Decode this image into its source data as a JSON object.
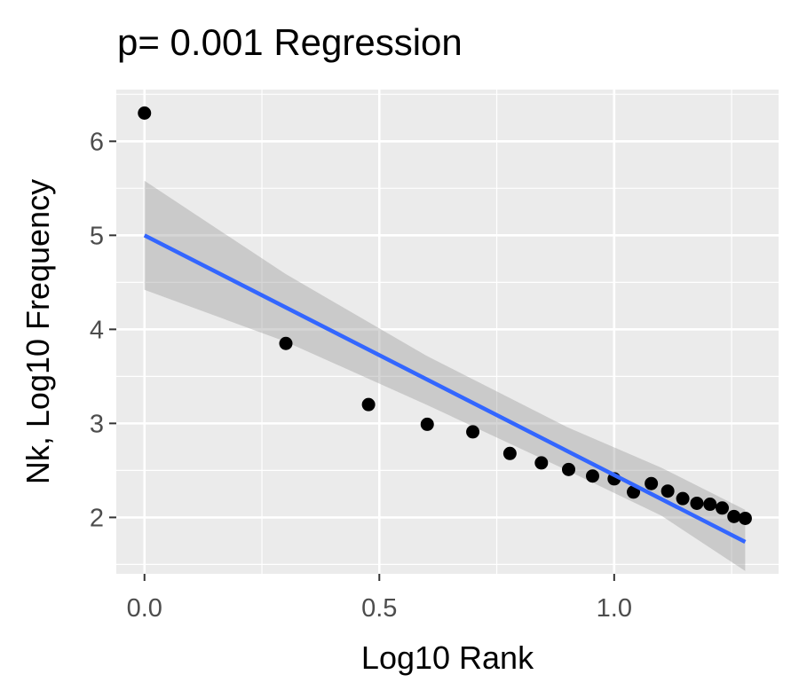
{
  "chart_data": {
    "type": "scatter",
    "title": "p= 0.001 Regression",
    "xlabel": "Log10 Rank",
    "ylabel": "Nk, Log10 Frequency",
    "xlim": [
      -0.06,
      1.35
    ],
    "ylim": [
      1.4,
      6.55
    ],
    "x_ticks": [
      {
        "value": 0.0,
        "label": "0.0"
      },
      {
        "value": 0.5,
        "label": "0.5"
      },
      {
        "value": 1.0,
        "label": "1.0"
      }
    ],
    "y_ticks": [
      {
        "value": 2,
        "label": "2"
      },
      {
        "value": 3,
        "label": "3"
      },
      {
        "value": 4,
        "label": "4"
      },
      {
        "value": 5,
        "label": "5"
      },
      {
        "value": 6,
        "label": "6"
      }
    ],
    "grid": true,
    "panel_background": "#ebebeb",
    "point_color": "#000000",
    "line_color": "#3366ff",
    "ribbon_color": "#999999",
    "points": [
      {
        "x": 0.0,
        "y": 6.3
      },
      {
        "x": 0.301,
        "y": 3.85
      },
      {
        "x": 0.477,
        "y": 3.2
      },
      {
        "x": 0.602,
        "y": 2.99
      },
      {
        "x": 0.699,
        "y": 2.91
      },
      {
        "x": 0.778,
        "y": 2.68
      },
      {
        "x": 0.845,
        "y": 2.58
      },
      {
        "x": 0.903,
        "y": 2.51
      },
      {
        "x": 0.954,
        "y": 2.44
      },
      {
        "x": 1.0,
        "y": 2.41
      },
      {
        "x": 1.041,
        "y": 2.27
      },
      {
        "x": 1.079,
        "y": 2.36
      },
      {
        "x": 1.114,
        "y": 2.28
      },
      {
        "x": 1.146,
        "y": 2.2
      },
      {
        "x": 1.176,
        "y": 2.15
      },
      {
        "x": 1.204,
        "y": 2.14
      },
      {
        "x": 1.23,
        "y": 2.1
      },
      {
        "x": 1.255,
        "y": 2.01
      },
      {
        "x": 1.279,
        "y": 1.99
      }
    ],
    "regression": {
      "x_start": 0.0,
      "y_start": 5.0,
      "x_end": 1.279,
      "y_end": 1.74
    },
    "confidence_band": [
      {
        "x": 0.0,
        "lower": 4.42,
        "upper": 5.58
      },
      {
        "x": 0.3,
        "lower": 3.87,
        "upper": 4.59
      },
      {
        "x": 0.6,
        "lower": 3.2,
        "upper": 3.72
      },
      {
        "x": 0.9,
        "lower": 2.5,
        "upper": 2.96
      },
      {
        "x": 1.1,
        "lower": 2.02,
        "upper": 2.53
      },
      {
        "x": 1.279,
        "lower": 1.43,
        "upper": 2.08
      }
    ]
  }
}
